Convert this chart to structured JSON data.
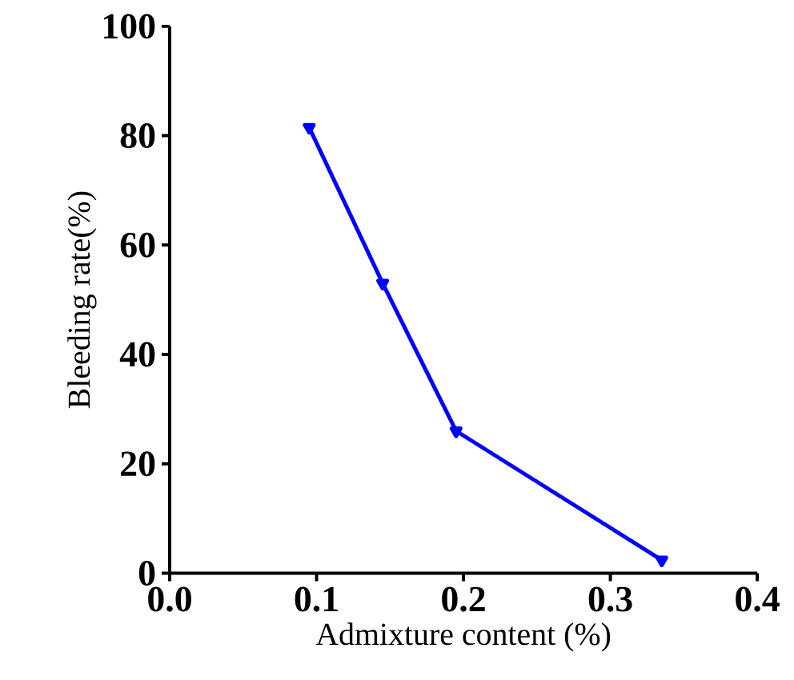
{
  "chart_data": {
    "type": "line",
    "xlabel": "Admixture content (%)",
    "ylabel": "Bleeding rate(%)",
    "x": [
      0.095,
      0.145,
      0.195,
      0.335
    ],
    "series": [
      {
        "color": "#0000ff",
        "values": [
          81.5,
          53,
          26,
          2.4
        ]
      }
    ],
    "xlim": [
      0,
      0.4
    ],
    "ylim": [
      0,
      100
    ],
    "xticks": [
      {
        "value": 0,
        "label": "0.0"
      },
      0.1,
      0.2,
      0.3,
      0.4
    ],
    "yticks": [
      0,
      20,
      40,
      60,
      80,
      100
    ],
    "marker": "triangle",
    "line_style": "solid",
    "grid": false
  }
}
